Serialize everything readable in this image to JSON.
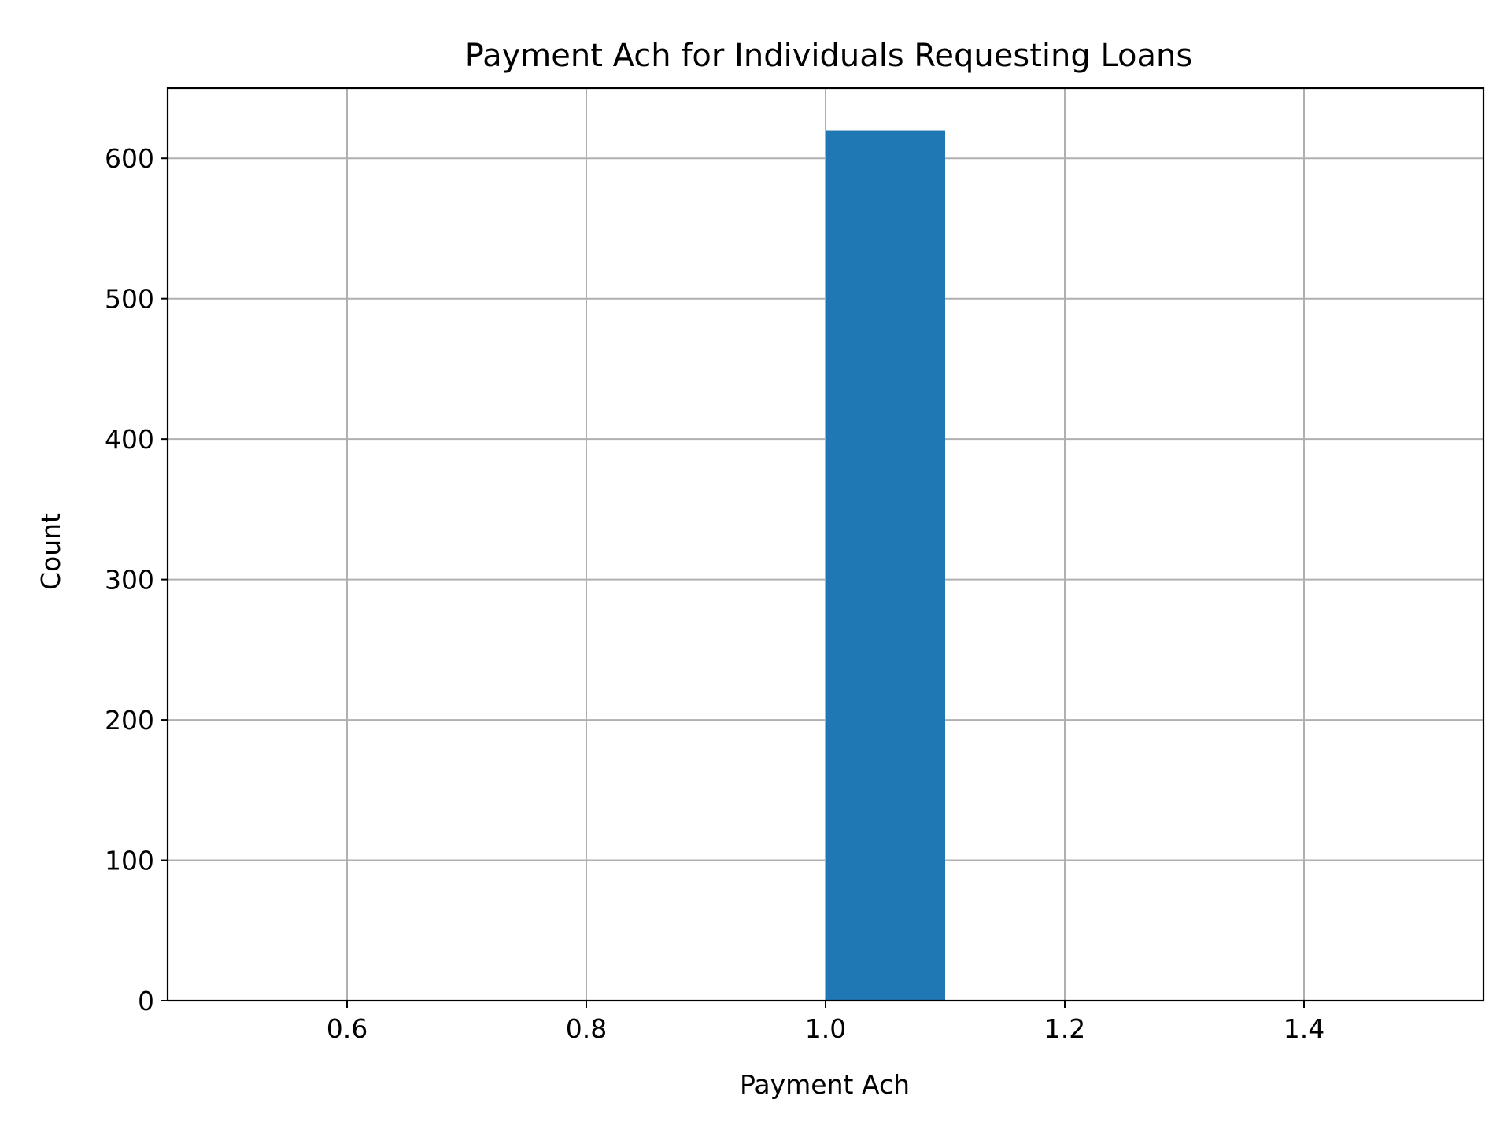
{
  "chart_data": {
    "type": "bar",
    "title": "Payment Ach for Individuals Requesting Loans",
    "xlabel": "Payment Ach",
    "ylabel": "Count",
    "xlim": [
      0.45,
      1.55
    ],
    "ylim": [
      0,
      650
    ],
    "x_ticks": [
      0.6,
      0.8,
      1.0,
      1.2,
      1.4
    ],
    "x_tick_labels": [
      "0.6",
      "0.8",
      "1.0",
      "1.2",
      "1.4"
    ],
    "y_ticks": [
      0,
      100,
      200,
      300,
      400,
      500,
      600
    ],
    "y_tick_labels": [
      "0",
      "100",
      "200",
      "300",
      "400",
      "500",
      "600"
    ],
    "grid": true,
    "bars": [
      {
        "x_start": 1.0,
        "x_end": 1.1,
        "value": 620
      }
    ],
    "colors": {
      "bar": "#1f77b4",
      "grid": "#b0b0b0",
      "axes": "#000000"
    }
  }
}
